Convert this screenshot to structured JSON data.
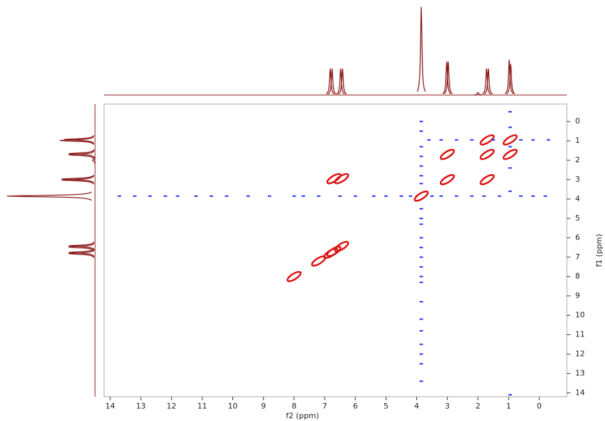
{
  "chart_data": {
    "type": "scatter",
    "xlabel": "f2 (ppm)",
    "ylabel": "f1 (ppm)",
    "xlim": [
      14.2,
      -0.9
    ],
    "ylim": [
      -0.9,
      14.2
    ],
    "xticks": [
      14,
      13,
      12,
      11,
      10,
      9,
      8,
      7,
      6,
      5,
      4,
      3,
      2,
      1,
      0
    ],
    "yticks": [
      0,
      1,
      2,
      3,
      4,
      5,
      6,
      7,
      8,
      9,
      10,
      11,
      12,
      13,
      14
    ],
    "series": [
      {
        "color": "#dd1111",
        "x": [
          0.95,
          1.7,
          3.0,
          3.85,
          6.45,
          6.8,
          1.7,
          0.95,
          3.0,
          1.7,
          7.2,
          8.0,
          6.7,
          6.45,
          6.7
        ],
        "values": [
          0.95,
          1.7,
          3.0,
          3.85,
          6.45,
          6.8,
          0.95,
          1.7,
          1.7,
          3.0,
          7.2,
          8.0,
          2.95,
          2.95,
          6.7
        ]
      },
      {
        "color": "#2233ee",
        "x": [
          13.7,
          13.2,
          12.7,
          12.2,
          11.8,
          11.2,
          10.7,
          10.2,
          9.5,
          8.8,
          8.0,
          7.7,
          7.2,
          6.5,
          6.0,
          5.4,
          5.0,
          4.5,
          4.2,
          3.5,
          3.2,
          2.7,
          2.2,
          1.8,
          1.3,
          0.6,
          0.2,
          -0.2,
          3.85,
          3.85,
          3.85,
          3.85,
          3.85,
          3.85,
          3.85,
          3.85,
          3.85,
          3.85,
          3.85,
          3.85,
          3.85,
          3.85,
          3.85,
          3.85,
          3.85,
          3.85,
          3.85,
          3.85,
          3.85,
          3.85,
          3.85,
          3.6,
          3.2,
          2.7,
          2.2,
          1.5,
          0.6,
          0.2,
          -0.3,
          0.95,
          0.95,
          0.95,
          0.95,
          0.95,
          0.95
        ],
        "values": [
          3.85,
          3.85,
          3.85,
          3.85,
          3.85,
          3.85,
          3.85,
          3.85,
          3.85,
          3.85,
          3.85,
          3.85,
          3.85,
          3.85,
          3.85,
          3.85,
          3.85,
          3.85,
          3.85,
          3.85,
          3.85,
          3.85,
          3.85,
          3.85,
          3.85,
          3.85,
          3.85,
          3.85,
          0,
          0.5,
          1.3,
          1.8,
          2.3,
          2.8,
          3.2,
          4.5,
          5.0,
          5.3,
          6.0,
          6.5,
          7.0,
          7.5,
          8.0,
          8.3,
          9.3,
          10.2,
          10.8,
          11.5,
          12.0,
          12.5,
          13.4,
          0.95,
          0.95,
          0.95,
          0.95,
          0.95,
          0.95,
          0.95,
          0.95,
          -0.5,
          0.3,
          1.3,
          2.4,
          3.6,
          14.1
        ]
      }
    ],
    "projection": {
      "color": "#8b1a1a",
      "x": [
        6.82,
        6.76,
        6.48,
        6.42,
        3.85,
        3.02,
        2.97,
        2.0,
        1.72,
        1.66,
        0.98,
        0.93
      ],
      "values": [
        0.3,
        0.3,
        0.3,
        0.3,
        1,
        0.38,
        0.38,
        0.03,
        0.3,
        0.3,
        0.4,
        0.35
      ]
    }
  }
}
